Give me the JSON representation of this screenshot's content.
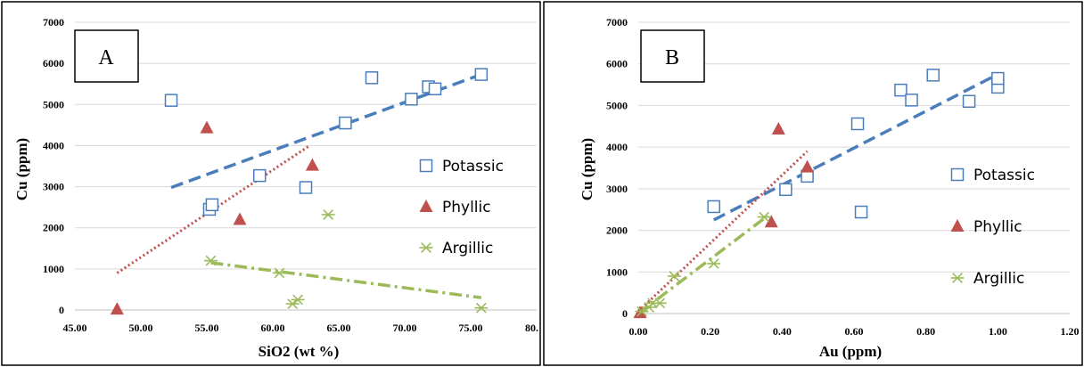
{
  "colors": {
    "potassic": "#4a7ebb",
    "phyllic": "#c0504d",
    "argillic": "#9bbb59"
  },
  "chart_data": [
    {
      "type": "scatter",
      "panel_label": "A",
      "xlabel": "SiO2 (wt %)",
      "ylabel": "Cu (ppm)",
      "xlim": [
        45,
        80
      ],
      "ylim": [
        0,
        7000
      ],
      "x_ticks": [
        "45.00",
        "50.00",
        "55.00",
        "60.00",
        "65.00",
        "70.00",
        "75.00",
        "80."
      ],
      "y_ticks": [
        "0",
        "1000",
        "2000",
        "3000",
        "4000",
        "5000",
        "6000",
        "7000"
      ],
      "grid": true,
      "legend_position": "right",
      "series": [
        {
          "name": "Potassic",
          "marker": "square-open",
          "color_key": "potassic",
          "points": [
            [
              52.3,
              5100
            ],
            [
              55.2,
              2450
            ],
            [
              55.4,
              2560
            ],
            [
              59.0,
              3270
            ],
            [
              62.5,
              2980
            ],
            [
              65.5,
              4550
            ],
            [
              67.5,
              5650
            ],
            [
              70.5,
              5130
            ],
            [
              71.8,
              5430
            ],
            [
              72.3,
              5380
            ],
            [
              75.8,
              5730
            ]
          ],
          "trendline": {
            "style": "dashed",
            "x": [
              52.3,
              75.8
            ],
            "y": [
              2980,
              5730
            ]
          }
        },
        {
          "name": "Phyllic",
          "marker": "triangle-filled",
          "color_key": "phyllic",
          "points": [
            [
              48.2,
              20
            ],
            [
              55.0,
              4430
            ],
            [
              57.5,
              2200
            ],
            [
              63.0,
              3520
            ]
          ],
          "trendline": {
            "style": "dotted",
            "x": [
              48.2,
              62.8
            ],
            "y": [
              900,
              4000
            ]
          }
        },
        {
          "name": "Argillic",
          "marker": "asterisk",
          "color_key": "argillic",
          "points": [
            [
              55.3,
              1200
            ],
            [
              60.5,
              900
            ],
            [
              61.5,
              150
            ],
            [
              61.9,
              250
            ],
            [
              64.2,
              2320
            ],
            [
              75.8,
              50
            ]
          ],
          "trendline": {
            "style": "dash-dot",
            "x": [
              55.3,
              75.8
            ],
            "y": [
              1150,
              300
            ]
          }
        }
      ]
    },
    {
      "type": "scatter",
      "panel_label": "B",
      "xlabel": "Au (ppm)",
      "ylabel": "Cu (ppm)",
      "xlim": [
        0,
        1.2
      ],
      "ylim": [
        0,
        7000
      ],
      "x_ticks": [
        "0.00",
        "0.20",
        "0.40",
        "0.60",
        "0.80",
        "1.00",
        "1.20"
      ],
      "y_ticks": [
        "0",
        "1000",
        "2000",
        "3000",
        "4000",
        "5000",
        "6000",
        "7000"
      ],
      "grid": true,
      "legend_position": "right",
      "series": [
        {
          "name": "Potassic",
          "marker": "square-open",
          "color_key": "potassic",
          "points": [
            [
              0.21,
              2570
            ],
            [
              0.41,
              2980
            ],
            [
              0.47,
              3300
            ],
            [
              0.61,
              4560
            ],
            [
              0.62,
              2440
            ],
            [
              0.73,
              5370
            ],
            [
              0.76,
              5130
            ],
            [
              0.82,
              5730
            ],
            [
              0.92,
              5100
            ],
            [
              1.0,
              5440
            ],
            [
              1.0,
              5650
            ]
          ],
          "trendline": {
            "style": "dashed",
            "x": [
              0.21,
              1.0
            ],
            "y": [
              2250,
              5750
            ]
          }
        },
        {
          "name": "Phyllic",
          "marker": "triangle-filled",
          "color_key": "phyllic",
          "points": [
            [
              0.005,
              20
            ],
            [
              0.37,
              2200
            ],
            [
              0.39,
              4430
            ],
            [
              0.47,
              3520
            ]
          ],
          "trendline": {
            "style": "dotted",
            "x": [
              0.0,
              0.47
            ],
            "y": [
              50,
              3900
            ]
          }
        },
        {
          "name": "Argillic",
          "marker": "asterisk",
          "color_key": "argillic",
          "points": [
            [
              0.01,
              50
            ],
            [
              0.03,
              150
            ],
            [
              0.04,
              250
            ],
            [
              0.06,
              250
            ],
            [
              0.1,
              900
            ],
            [
              0.21,
              1200
            ],
            [
              0.35,
              2320
            ]
          ],
          "trendline": {
            "style": "dash-dot",
            "x": [
              0.0,
              0.36
            ],
            "y": [
              0,
              2350
            ]
          }
        }
      ]
    }
  ]
}
